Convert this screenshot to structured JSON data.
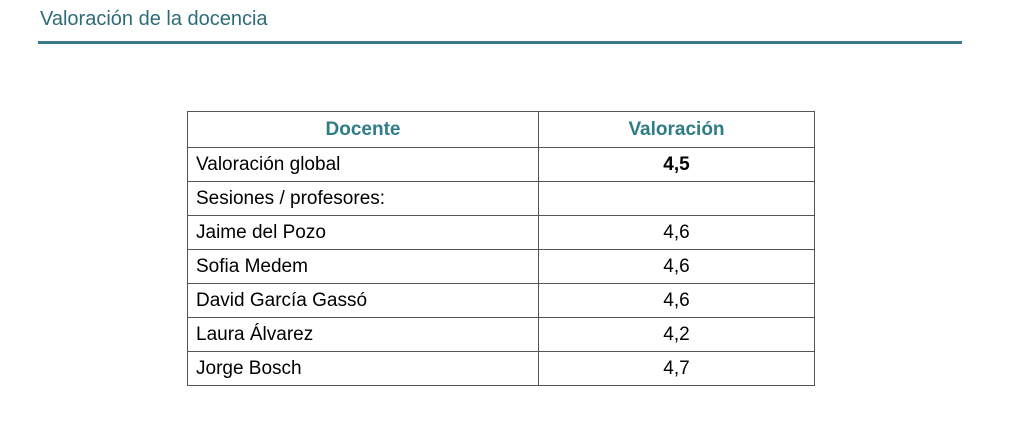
{
  "title": "Valoración de la docencia",
  "table": {
    "headers": [
      "Docente",
      "Valoración"
    ],
    "rows": [
      {
        "name": "Valoración global",
        "value": "4,5"
      },
      {
        "name": "Sesiones / profesores:",
        "value": ""
      },
      {
        "name": "Jaime del Pozo",
        "value": "4,6"
      },
      {
        "name": "Sofia Medem",
        "value": "4,6"
      },
      {
        "name": "David García Gassó",
        "value": "4,6"
      },
      {
        "name": "Laura Álvarez",
        "value": "4,2"
      },
      {
        "name": "Jorge Bosch",
        "value": "4,7"
      }
    ]
  }
}
